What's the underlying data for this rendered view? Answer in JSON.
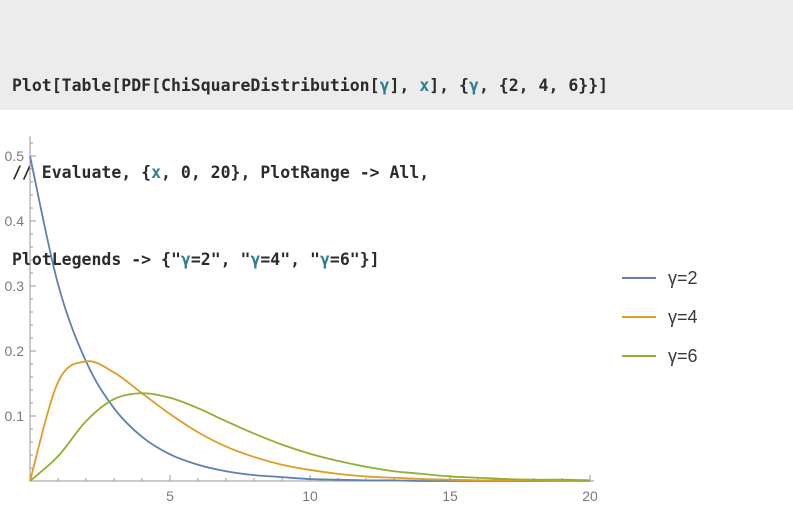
{
  "code_cell": {
    "segments": [
      [
        {
          "t": "Plot[Table[PDF[ChiSquareDistribution[",
          "c": "kw"
        },
        {
          "t": "γ",
          "c": "var"
        },
        {
          "t": "], ",
          "c": "kw"
        },
        {
          "t": "x",
          "c": "var"
        },
        {
          "t": "], {",
          "c": "kw"
        },
        {
          "t": "γ",
          "c": "var"
        },
        {
          "t": ", {2, 4, 6}}]",
          "c": "kw"
        }
      ],
      [
        {
          "t": "// Evaluate, {",
          "c": "kw"
        },
        {
          "t": "x",
          "c": "var"
        },
        {
          "t": ", 0, 20}, PlotRange -> All,",
          "c": "kw"
        }
      ],
      [
        {
          "t": "PlotLegends -> {\"",
          "c": "kw"
        },
        {
          "t": "γ",
          "c": "var"
        },
        {
          "t": "=2\", \"",
          "c": "kw"
        },
        {
          "t": "γ",
          "c": "var"
        },
        {
          "t": "=4\", \"",
          "c": "kw"
        },
        {
          "t": "γ",
          "c": "var"
        },
        {
          "t": "=6\"}]",
          "c": "kw"
        }
      ]
    ],
    "colors": {
      "background": "#ececec",
      "keyword": "#2b2b2b",
      "variable": "#2f7f8f"
    }
  },
  "chart_data": {
    "type": "line",
    "title": "",
    "xlabel": "",
    "ylabel": "",
    "xlim": [
      0,
      20
    ],
    "ylim": [
      0,
      0.5
    ],
    "x_ticks": [
      5,
      10,
      15,
      20
    ],
    "y_ticks": [
      0.1,
      0.2,
      0.3,
      0.4,
      0.5
    ],
    "x_tick_labels": [
      "5",
      "10",
      "15",
      "20"
    ],
    "y_tick_labels": [
      "0.1",
      "0.2",
      "0.3",
      "0.4",
      "0.5"
    ],
    "grid": false,
    "legend_position": "right",
    "x": [
      0,
      1,
      2,
      3,
      4,
      5,
      6,
      7,
      8,
      9,
      10,
      11,
      12,
      13,
      14,
      15,
      16,
      17,
      18,
      19,
      20
    ],
    "series": [
      {
        "name": "γ=2",
        "color": "#5e81b5",
        "values": [
          0.5,
          0.303,
          0.184,
          0.112,
          0.068,
          0.041,
          0.025,
          0.015,
          0.009,
          0.006,
          0.003,
          0.002,
          0.001,
          0.001,
          0,
          0,
          0,
          0,
          0,
          0,
          0
        ]
      },
      {
        "name": "γ=4",
        "color": "#e19c24",
        "values": [
          0,
          0.152,
          0.184,
          0.167,
          0.135,
          0.103,
          0.075,
          0.053,
          0.037,
          0.025,
          0.017,
          0.011,
          0.007,
          0.005,
          0.003,
          0.002,
          0.001,
          0.001,
          0.001,
          0,
          0
        ]
      },
      {
        "name": "γ=6",
        "color": "#8fb032",
        "values": [
          0,
          0.038,
          0.092,
          0.126,
          0.135,
          0.128,
          0.112,
          0.092,
          0.073,
          0.056,
          0.042,
          0.031,
          0.022,
          0.015,
          0.011,
          0.007,
          0.005,
          0.003,
          0.002,
          0.002,
          0.001
        ]
      }
    ]
  }
}
